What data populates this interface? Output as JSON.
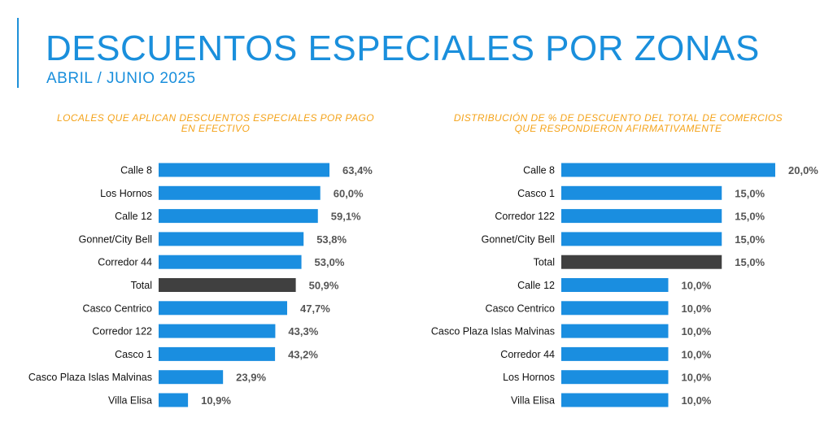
{
  "header": {
    "title": "DESCUENTOS ESPECIALES POR ZONAS",
    "subtitle": "ABRIL / JUNIO 2025"
  },
  "colors": {
    "bar": "#1a8ee0",
    "total_bar": "#404040",
    "accent": "#1a8fdc",
    "chart_title": "#f4a31a"
  },
  "chart_data": [
    {
      "type": "bar",
      "orientation": "horizontal",
      "title_lines": [
        "LOCALES QUE APLICAN DESCUENTOS ESPECIALES POR PAGO",
        "EN EFECTIVO"
      ],
      "categories": [
        "Calle 8",
        "Los Hornos",
        "Calle 12",
        "Gonnet/City Bell",
        "Corredor 44",
        "Total",
        "Casco Centrico",
        "Corredor 122",
        "Casco 1",
        "Casco Plaza Islas Malvinas",
        "Villa Elisa"
      ],
      "values": [
        63.4,
        60.0,
        59.1,
        53.8,
        53.0,
        50.9,
        47.7,
        43.3,
        43.2,
        23.9,
        10.9
      ],
      "labels": [
        "63,4%",
        "60,0%",
        "59,1%",
        "53,8%",
        "53,0%",
        "50,9%",
        "47,7%",
        "43,3%",
        "43,2%",
        "23,9%",
        "10,9%"
      ],
      "highlight": "Total",
      "xlim": [
        0,
        63.4
      ]
    },
    {
      "type": "bar",
      "orientation": "horizontal",
      "title_lines": [
        "DISTRIBUCIÓN DE % DE DESCUENTO DEL TOTAL DE COMERCIOS",
        "QUE RESPONDIERON AFIRMATIVAMENTE"
      ],
      "categories": [
        "Calle 8",
        "Casco 1",
        "Corredor 122",
        "Gonnet/City Bell",
        "Total",
        "Calle 12",
        "Casco Centrico",
        "Casco Plaza Islas Malvinas",
        "Corredor 44",
        "Los Hornos",
        "Villa Elisa"
      ],
      "values": [
        20.0,
        15.0,
        15.0,
        15.0,
        15.0,
        10.0,
        10.0,
        10.0,
        10.0,
        10.0,
        10.0
      ],
      "labels": [
        "20,0%",
        "15,0%",
        "15,0%",
        "15,0%",
        "15,0%",
        "10,0%",
        "10,0%",
        "10,0%",
        "10,0%",
        "10,0%",
        "10,0%"
      ],
      "highlight": "Total",
      "xlim": [
        0,
        20.0
      ]
    }
  ]
}
